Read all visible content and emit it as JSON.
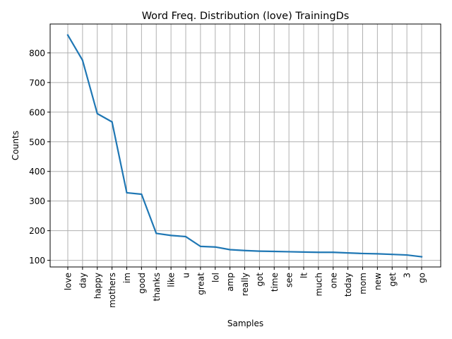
{
  "chart_data": {
    "type": "line",
    "title": "Word Freq. Distribution (love) TrainingDs",
    "xlabel": "Samples",
    "ylabel": "Counts",
    "categories": [
      "love",
      "day",
      "happy",
      "mothers",
      "im",
      "good",
      "thanks",
      "like",
      "u",
      "great",
      "lol",
      "amp",
      "really",
      "got",
      "time",
      "see",
      "lt",
      "much",
      "one",
      "today",
      "mom",
      "new",
      "get",
      "3",
      "go"
    ],
    "values": [
      860,
      775,
      595,
      567,
      328,
      323,
      191,
      184,
      180,
      147,
      145,
      136,
      133,
      131,
      130,
      129,
      128,
      127,
      127,
      125,
      123,
      122,
      120,
      118,
      112
    ],
    "ylim": [
      77.6,
      897.4
    ],
    "yticks": [
      100,
      200,
      300,
      400,
      500,
      600,
      700,
      800
    ],
    "grid": true,
    "line_color": "#1f77b4"
  }
}
